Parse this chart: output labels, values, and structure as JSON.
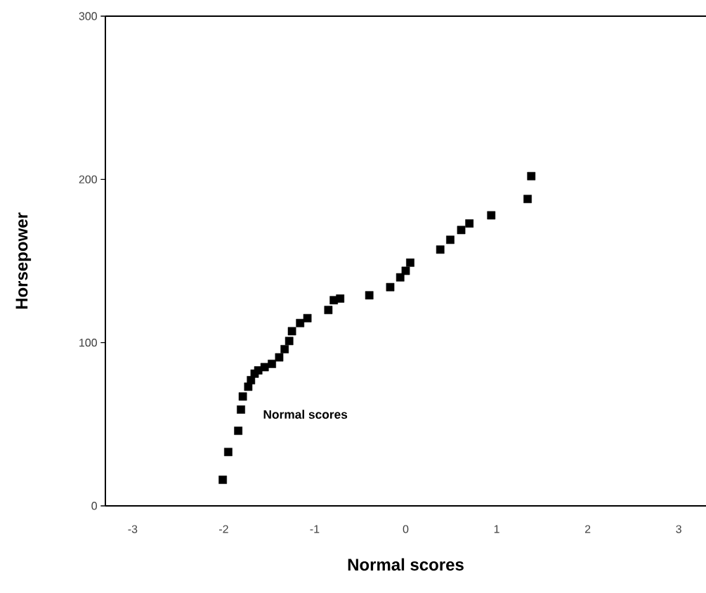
{
  "chart_data": {
    "type": "scatter",
    "xlabel": "Normal scores",
    "ylabel": "Horsepower",
    "annotations": [
      "Normal scores"
    ],
    "xlim": [
      -3.3,
      3.3
    ],
    "ylim": [
      0,
      300
    ],
    "xticks": [
      -3,
      -2,
      -1,
      0,
      1,
      2,
      3
    ],
    "yticks": [
      0,
      100,
      200,
      300
    ],
    "marker": "square",
    "series": [
      {
        "color": "#000000",
        "x": [
          -2.01,
          -1.95,
          -1.84,
          -1.81,
          -1.79,
          -1.73,
          -1.7,
          -1.66,
          -1.62,
          -1.55,
          -1.47,
          -1.39,
          -1.33,
          -1.28,
          -1.25,
          -1.16,
          -1.08,
          -0.85,
          -0.79,
          -0.72,
          -0.4,
          -0.17,
          -0.06,
          0.0,
          0.05,
          0.38,
          0.49,
          0.61,
          0.7,
          0.94,
          1.34,
          1.38
        ],
        "values": [
          16,
          33,
          46,
          59,
          67,
          73,
          77,
          81,
          83,
          85,
          87,
          91,
          96,
          101,
          107,
          112,
          115,
          120,
          126,
          127,
          129,
          134,
          140,
          144,
          149,
          157,
          163,
          169,
          173,
          178,
          188,
          202
        ]
      }
    ]
  }
}
